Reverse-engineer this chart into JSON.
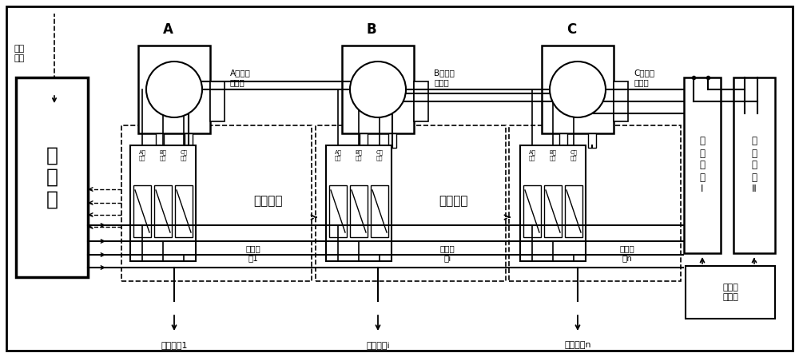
{
  "fig_w": 10.0,
  "fig_h": 4.47,
  "phases": [
    "A",
    "B",
    "C"
  ],
  "connector_labels": [
    "A相进线\n接线柱",
    "B相进线\n接线柱",
    "C相进线\n接线柱"
  ],
  "unit_labels": [
    "开关单\n元1",
    "开关单\n元i",
    "开关单\n元n"
  ],
  "array_labels": [
    "开关阵列",
    "开关阵列"
  ],
  "sub_sw_labels": [
    "A相\n开关",
    "B相\n开关",
    "C相\n开关"
  ],
  "tr1_label": "过\n渡\n回\n路\nI",
  "tr2_label": "过\n渡\n回\n路\nII",
  "ls_label": "负荷选\n择开关",
  "proc_label": "处\n理\n器",
  "config_label": "配变\n终端",
  "load_labels": [
    "负荷出线1",
    "负荷出线i",
    "负荷出线n"
  ]
}
